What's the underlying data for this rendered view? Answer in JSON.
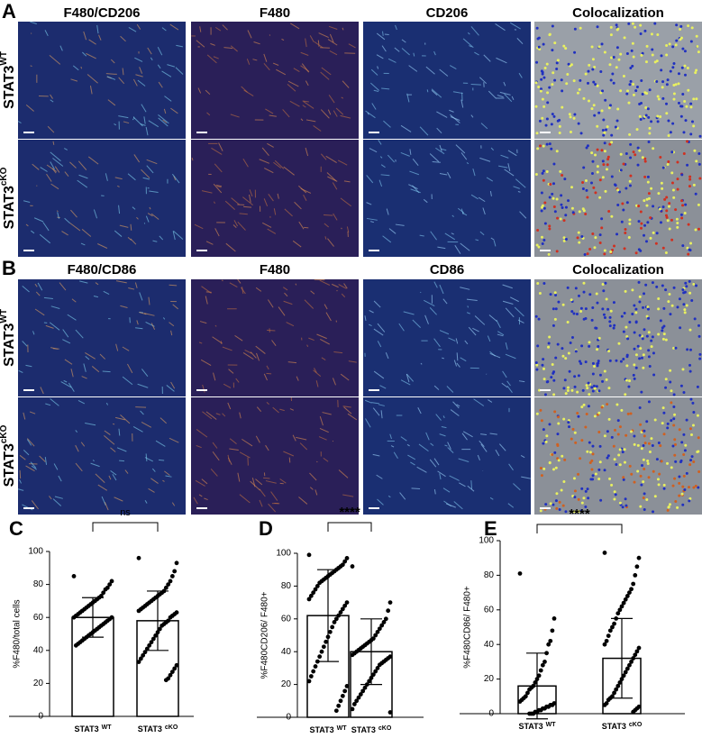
{
  "image_panels": [
    {
      "letter": "A",
      "columns": [
        "F480/CD206",
        "F480",
        "CD206",
        "Colocalization"
      ],
      "rows": [
        {
          "label": "STAT3",
          "sup": "WT"
        },
        {
          "label": "STAT3",
          "sup": "cKO"
        }
      ]
    },
    {
      "letter": "B",
      "columns": [
        "F480/CD86",
        "F480",
        "CD86",
        "Colocalization"
      ],
      "rows": [
        {
          "label": "STAT3",
          "sup": "WT"
        },
        {
          "label": "STAT3",
          "sup": "cKO"
        }
      ]
    }
  ],
  "chart_data": [
    {
      "type": "bar",
      "letter": "C",
      "ylabel": "%F480/total cells",
      "categories": [
        {
          "label": "STAT3",
          "sup": "WT"
        },
        {
          "label": "STAT3",
          "sup": "cKO"
        }
      ],
      "values": [
        60,
        58
      ],
      "errors": [
        12,
        18
      ],
      "significance": "ns",
      "ylim": [
        0,
        100
      ],
      "yticks": [
        0,
        20,
        40,
        60,
        80,
        100
      ],
      "points": [
        [
          85,
          82,
          80,
          78,
          77,
          75,
          73,
          72,
          71,
          70,
          69,
          68,
          67,
          66,
          65,
          64,
          63,
          62,
          61,
          60,
          60,
          59,
          58,
          57,
          56,
          55,
          54,
          53,
          52,
          51,
          50,
          49,
          48,
          47,
          46,
          45,
          44,
          43
        ],
        [
          96,
          93,
          88,
          85,
          82,
          80,
          78,
          76,
          75,
          74,
          73,
          72,
          71,
          70,
          69,
          68,
          67,
          66,
          65,
          64,
          63,
          62,
          61,
          60,
          58,
          57,
          56,
          55,
          53,
          51,
          49,
          47,
          45,
          43,
          41,
          39,
          37,
          35,
          33,
          31,
          29,
          27,
          25,
          23,
          22
        ]
      ]
    },
    {
      "type": "bar",
      "letter": "D",
      "ylabel": "%F480CD206/ F480+",
      "categories": [
        {
          "label": "STAT3",
          "sup": "WT"
        },
        {
          "label": "STAT3",
          "sup": "cKO"
        }
      ],
      "values": [
        62,
        40
      ],
      "errors": [
        28,
        20
      ],
      "significance": "****",
      "ylim": [
        0,
        100
      ],
      "yticks": [
        0,
        20,
        40,
        60,
        80,
        100
      ],
      "points": [
        [
          99,
          97,
          95,
          93,
          92,
          91,
          90,
          89,
          88,
          87,
          86,
          85,
          84,
          83,
          82,
          80,
          78,
          76,
          74,
          72,
          70,
          68,
          66,
          64,
          62,
          60,
          58,
          55,
          52,
          49,
          46,
          43,
          40,
          37,
          34,
          31,
          28,
          25,
          22,
          19,
          16,
          13,
          10,
          7,
          4
        ],
        [
          92,
          70,
          65,
          60,
          58,
          56,
          54,
          52,
          50,
          48,
          47,
          46,
          45,
          44,
          43,
          42,
          41,
          40,
          39,
          38,
          37,
          36,
          35,
          34,
          33,
          32,
          30,
          28,
          26,
          24,
          22,
          20,
          18,
          16,
          14,
          12,
          10,
          8,
          5,
          3
        ]
      ]
    },
    {
      "type": "bar",
      "letter": "E",
      "ylabel": "%F480CD86/ F480+",
      "categories": [
        {
          "label": "STAT3",
          "sup": "WT"
        },
        {
          "label": "STAT3",
          "sup": "cKO"
        }
      ],
      "values": [
        16,
        32
      ],
      "errors": [
        19,
        23
      ],
      "significance": "****",
      "ylim": [
        0,
        100
      ],
      "yticks": [
        0,
        20,
        40,
        60,
        80,
        100
      ],
      "points": [
        [
          81,
          55,
          48,
          42,
          40,
          35,
          30,
          28,
          25,
          22,
          20,
          18,
          16,
          15,
          14,
          12,
          10,
          9,
          8,
          7,
          6,
          5,
          5,
          4,
          4,
          3,
          3,
          2,
          2,
          1,
          1,
          0,
          0,
          0
        ],
        [
          93,
          90,
          85,
          80,
          75,
          72,
          70,
          68,
          66,
          64,
          62,
          60,
          58,
          55,
          52,
          50,
          48,
          45,
          42,
          40,
          38,
          36,
          34,
          32,
          30,
          28,
          26,
          24,
          22,
          20,
          18,
          16,
          14,
          12,
          10,
          9,
          8,
          6,
          5,
          4,
          3,
          2,
          1
        ]
      ]
    }
  ]
}
